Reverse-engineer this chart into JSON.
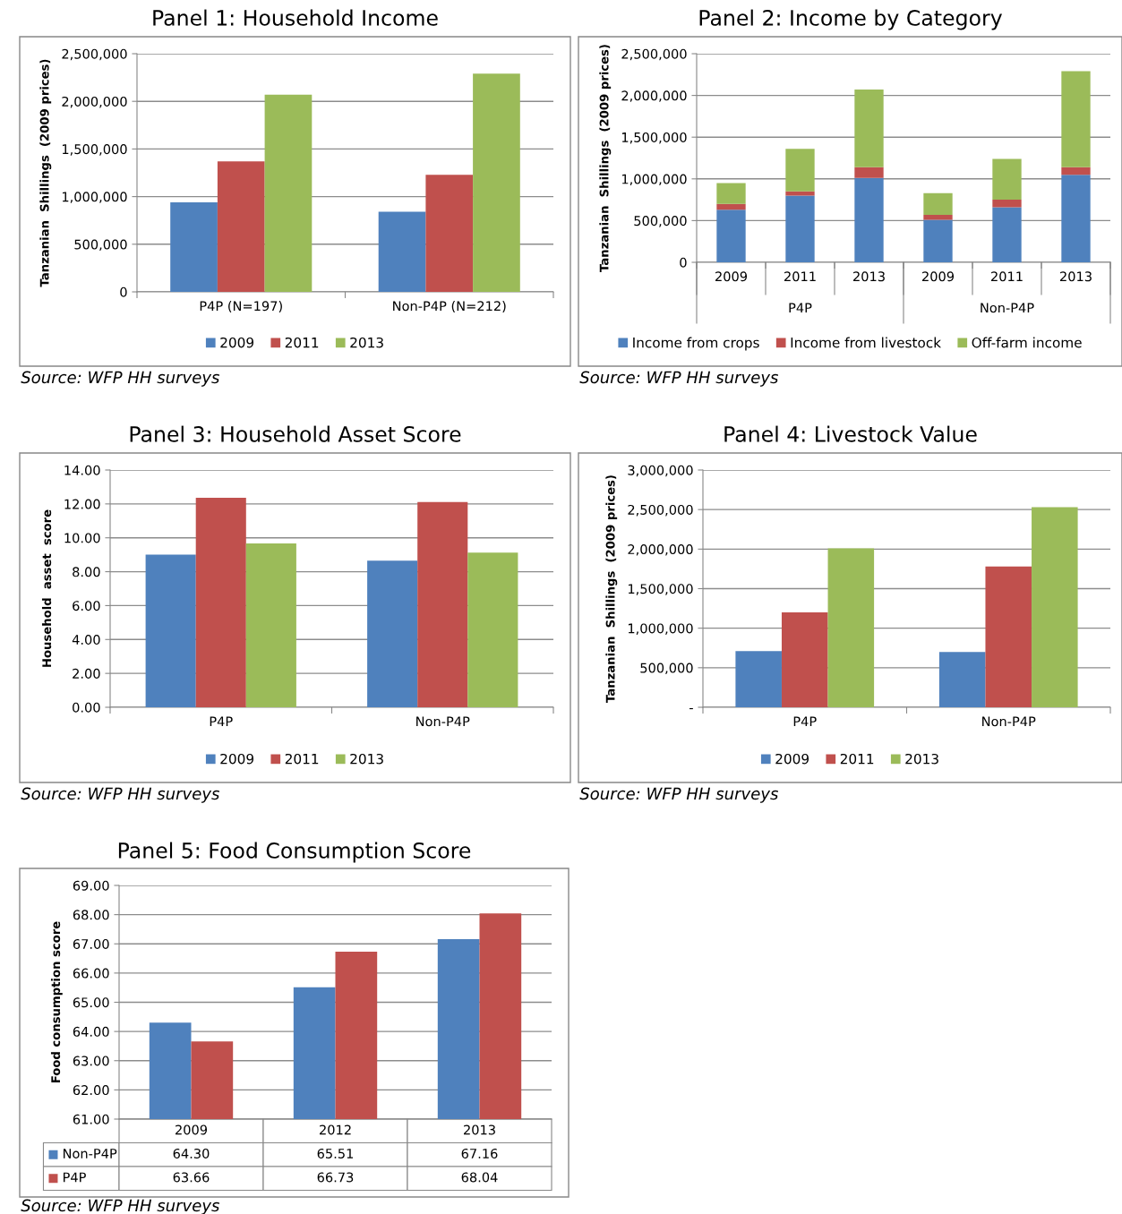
{
  "chart_data": [
    {
      "type": "bar",
      "title": "Panel 1: Household Income",
      "ylabel": "Tanzanian  Shillings  (2009 prices)",
      "categories": [
        "P4P (N=197)",
        "Non-P4P (N=212)"
      ],
      "series": [
        {
          "name": "2009",
          "color": "#4f81bd",
          "values": [
            940000,
            840000
          ]
        },
        {
          "name": "2011",
          "color": "#c0504d",
          "values": [
            1370000,
            1230000
          ]
        },
        {
          "name": "2013",
          "color": "#9bbb59",
          "values": [
            2070000,
            2290000
          ]
        }
      ],
      "ylim": [
        0,
        2500000
      ],
      "yticks": [
        0,
        {
          "value": 500000,
          "label": "500,000"
        },
        {
          "value": 1000000,
          "label": "1,000,000"
        },
        {
          "value": 1500000,
          "label": "1,500,000"
        },
        {
          "value": 2000000,
          "label": "2,000,000"
        },
        {
          "value": 2500000,
          "label": "2,500,000"
        }
      ],
      "grid": "y",
      "legend": "bottom",
      "annotations": [
        "Source: WFP HH surveys"
      ]
    },
    {
      "type": "bar",
      "stacked": true,
      "title": "Panel 2: Income by Category",
      "ylabel": "Tanzanian  Shillings  (2009 prices)",
      "categories": [
        "2009",
        "2011",
        "2013",
        "2009",
        "2011",
        "2013"
      ],
      "series": [
        {
          "name": "Income from crops",
          "color": "#4f81bd",
          "values": [
            630000,
            800000,
            1010000,
            510000,
            660000,
            1050000
          ]
        },
        {
          "name": "Income from livestock",
          "color": "#c0504d",
          "values": [
            70000,
            50000,
            130000,
            60000,
            90000,
            90000
          ]
        },
        {
          "name": "Off-farm income",
          "color": "#9bbb59",
          "values": [
            250000,
            510000,
            930000,
            260000,
            490000,
            1150000
          ]
        }
      ],
      "ylim": [
        0,
        2500000
      ],
      "yticks": [
        0,
        {
          "value": 500000,
          "label": "500,000"
        },
        {
          "value": 1000000,
          "label": "1,000,000"
        },
        {
          "value": 1500000,
          "label": "1,500,000"
        },
        {
          "value": 2000000,
          "label": "2,000,000"
        },
        {
          "value": 2500000,
          "label": "2,500,000"
        }
      ],
      "grid": "y",
      "legend": "bottom",
      "annotations": [
        "P4P",
        "Non-P4P",
        "Source: WFP HH surveys"
      ]
    },
    {
      "type": "bar",
      "title": "Panel 3: Household Asset Score",
      "ylabel": "Household  asset  score",
      "categories": [
        "P4P",
        "Non-P4P"
      ],
      "series": [
        {
          "name": "2009",
          "color": "#4f81bd",
          "values": [
            9.01,
            8.65
          ]
        },
        {
          "name": "2011",
          "color": "#c0504d",
          "values": [
            12.36,
            12.11
          ]
        },
        {
          "name": "2013",
          "color": "#9bbb59",
          "values": [
            9.67,
            9.13
          ]
        }
      ],
      "ylim": [
        0,
        14
      ],
      "yticks": [
        {
          "value": 0,
          "label": "0.00"
        },
        {
          "value": 2,
          "label": "2.00"
        },
        {
          "value": 4,
          "label": "4.00"
        },
        {
          "value": 6,
          "label": "6.00"
        },
        {
          "value": 8,
          "label": "8.00"
        },
        {
          "value": 10,
          "label": "10.00"
        },
        {
          "value": 12,
          "label": "12.00"
        },
        {
          "value": 14,
          "label": "14.00"
        }
      ],
      "grid": "y",
      "legend": "bottom",
      "annotations": [
        "Source: WFP HH surveys"
      ]
    },
    {
      "type": "bar",
      "title": "Panel 4: Livestock Value",
      "ylabel": "Tanzanian  Shillings  (2009 prices)",
      "categories": [
        "P4P",
        "Non-P4P"
      ],
      "series": [
        {
          "name": "2009",
          "color": "#4f81bd",
          "values": [
            710000,
            700000
          ]
        },
        {
          "name": "2011",
          "color": "#c0504d",
          "values": [
            1200000,
            1780000
          ]
        },
        {
          "name": "2013",
          "color": "#9bbb59",
          "values": [
            2010000,
            2530000
          ]
        }
      ],
      "ylim": [
        0,
        3000000
      ],
      "yticks": [
        {
          "value": 0,
          "label": "-"
        },
        {
          "value": 500000,
          "label": "500,000"
        },
        {
          "value": 1000000,
          "label": "1,000,000"
        },
        {
          "value": 1500000,
          "label": "1,500,000"
        },
        {
          "value": 2000000,
          "label": "2,000,000"
        },
        {
          "value": 2500000,
          "label": "2,500,000"
        },
        {
          "value": 3000000,
          "label": "3,000,000"
        }
      ],
      "grid": "y",
      "legend": "bottom",
      "annotations": [
        "Source: WFP HH surveys"
      ]
    },
    {
      "type": "bar",
      "title": "Panel 5: Food Consumption Score",
      "ylabel": "Food consumption score",
      "categories": [
        "2009",
        "2012",
        "2013"
      ],
      "series": [
        {
          "name": "Non-P4P",
          "color": "#4f81bd",
          "values": [
            64.3,
            65.51,
            67.16
          ],
          "value_labels": [
            "64.30",
            "65.51",
            "67.16"
          ]
        },
        {
          "name": "P4P",
          "color": "#c0504d",
          "values": [
            63.66,
            66.73,
            68.04
          ],
          "value_labels": [
            "63.66",
            "66.73",
            "68.04"
          ]
        }
      ],
      "ylim": [
        61,
        69
      ],
      "yticks": [
        {
          "value": 61,
          "label": "61.00"
        },
        {
          "value": 62,
          "label": "62.00"
        },
        {
          "value": 63,
          "label": "63.00"
        },
        {
          "value": 64,
          "label": "64.00"
        },
        {
          "value": 65,
          "label": "65.00"
        },
        {
          "value": 66,
          "label": "66.00"
        },
        {
          "value": 67,
          "label": "67.00"
        },
        {
          "value": 68,
          "label": "68.00"
        },
        {
          "value": 69,
          "label": "69.00"
        }
      ],
      "grid": "y",
      "legend": "bottom",
      "annotations": [
        "Source: WFP HH surveys"
      ]
    }
  ]
}
